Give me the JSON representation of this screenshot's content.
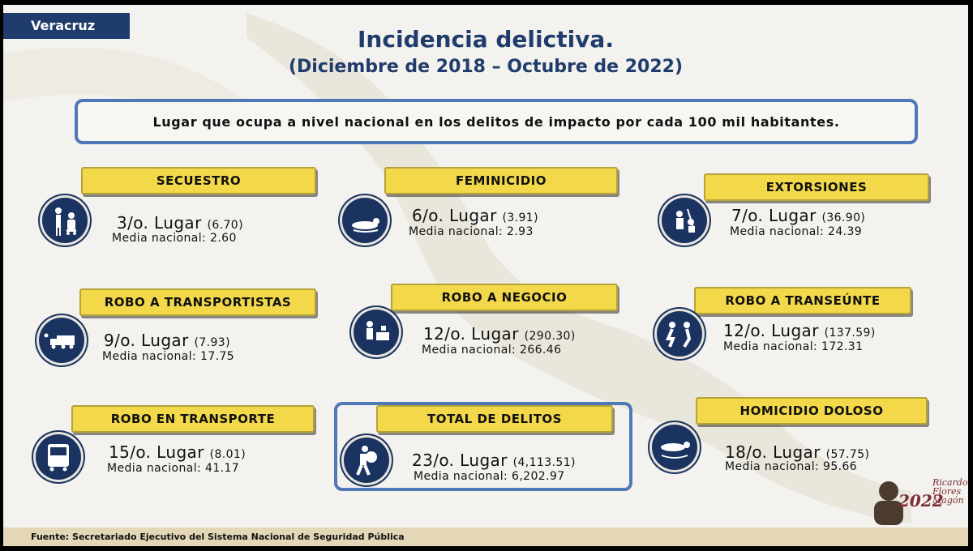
{
  "region_tab": "Veracruz",
  "title": "Incidencia delictiva.",
  "subtitle": "(Diciembre de 2018 – Octubre de 2022)",
  "description": "Lugar que ocupa a nivel nacional en los delitos de impacto por cada 100 mil habitantes.",
  "crimes": [
    {
      "label": "SECUESTRO",
      "icon": "kidnapping-icon",
      "rank": "3/o. Lugar",
      "value": "(6.70)",
      "media": "Media nacional:  2.60"
    },
    {
      "label": "FEMINICIDIO",
      "icon": "femicide-icon",
      "rank": "6/o. Lugar",
      "value": "(3.91)",
      "media": "Media nacional: 2.93"
    },
    {
      "label": "EXTORSIONES",
      "icon": "extortion-icon",
      "rank": "7/o. Lugar",
      "value": "(36.90)",
      "media": "Media nacional:  24.39"
    },
    {
      "label": "ROBO A TRANSPORTISTAS",
      "icon": "truck-robbery-icon",
      "rank": "9/o. Lugar",
      "value": "(7.93)",
      "media": "Media nacional: 17.75"
    },
    {
      "label": "ROBO A NEGOCIO",
      "icon": "business-robbery-icon",
      "rank": "12/o. Lugar",
      "value": "(290.30)",
      "media": "Media nacional: 266.46"
    },
    {
      "label": "ROBO A TRANSEÚNTE",
      "icon": "pedestrian-robbery-icon",
      "rank": "12/o. Lugar",
      "value": "(137.59)",
      "media": "Media nacional: 172.31"
    },
    {
      "label": "ROBO EN TRANSPORTE",
      "icon": "bus-icon",
      "rank": "15/o. Lugar",
      "value": "(8.01)",
      "media": "Media nacional: 41.17"
    },
    {
      "label": "TOTAL DE DELITOS",
      "icon": "thief-icon",
      "rank": "23/o. Lugar",
      "value": "(4,113.51)",
      "media": "Media nacional: 6,202.97"
    },
    {
      "label": "HOMICIDIO DOLOSO",
      "icon": "homicide-icon",
      "rank": "18/o. Lugar",
      "value": "(57.75)",
      "media": "Media nacional:  95.66"
    }
  ],
  "footer": "Fuente: Secretariado Ejecutivo del Sistema Nacional de Seguridad Pública",
  "logo": {
    "year": "2022",
    "name": "Ricardo Flores Magón"
  },
  "colors": {
    "navy": "#1f3c6c",
    "label_yellow": "#f3d94a",
    "box_blue": "#4f78b6",
    "footer_beige": "#e3d7b8"
  }
}
